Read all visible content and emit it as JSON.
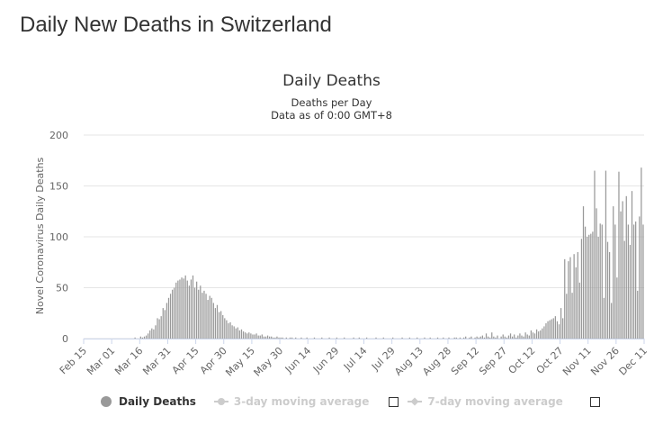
{
  "page": {
    "title": "Daily New Deaths in Switzerland"
  },
  "chart_data": {
    "type": "bar",
    "title": "Daily Deaths",
    "subtitle_lines": [
      "Deaths per Day",
      "Data as of 0:00 GMT+8"
    ],
    "xlabel": "",
    "ylabel": "Novel Coronavirus Daily Deaths",
    "ylim": [
      0,
      200
    ],
    "yticks": [
      0,
      50,
      100,
      150,
      200
    ],
    "grid": true,
    "bar_color": "#999999",
    "start_date": "2020-02-15",
    "xtick_labels": [
      "Feb 15",
      "Mar 01",
      "Mar 16",
      "Mar 31",
      "Apr 15",
      "Apr 30",
      "May 15",
      "May 30",
      "Jun 14",
      "Jun 29",
      "Jul 14",
      "Jul 29",
      "Aug 13",
      "Aug 28",
      "Sep 12",
      "Sep 27",
      "Oct 12",
      "Oct 27",
      "Nov 11",
      "Nov 26",
      "Dec 11"
    ],
    "legend": [
      "Daily Deaths",
      "3-day moving average",
      "7-day moving average"
    ],
    "legend_position": "bottom",
    "series": [
      {
        "name": "Daily Deaths",
        "values": [
          0,
          0,
          0,
          0,
          0,
          0,
          0,
          0,
          0,
          0,
          0,
          0,
          0,
          0,
          0,
          0,
          0,
          0,
          0,
          0,
          0,
          0,
          0,
          0,
          0,
          0,
          0,
          1,
          0,
          0,
          2,
          1,
          2,
          3,
          5,
          8,
          10,
          9,
          13,
          20,
          19,
          22,
          30,
          28,
          35,
          40,
          44,
          48,
          50,
          55,
          57,
          58,
          60,
          59,
          62,
          57,
          52,
          58,
          62,
          50,
          56,
          48,
          52,
          45,
          47,
          44,
          38,
          42,
          40,
          35,
          30,
          33,
          26,
          27,
          23,
          20,
          18,
          15,
          16,
          13,
          12,
          10,
          11,
          8,
          9,
          7,
          6,
          5,
          6,
          5,
          4,
          4,
          5,
          3,
          3,
          4,
          2,
          2,
          3,
          2,
          2,
          1,
          1,
          2,
          1,
          1,
          1,
          0,
          1,
          0,
          1,
          1,
          0,
          1,
          0,
          0,
          1,
          0,
          0,
          1,
          0,
          0,
          0,
          1,
          0,
          0,
          0,
          1,
          0,
          0,
          0,
          1,
          0,
          0,
          0,
          1,
          0,
          0,
          0,
          1,
          0,
          0,
          0,
          0,
          1,
          0,
          0,
          1,
          0,
          0,
          0,
          1,
          0,
          0,
          0,
          0,
          1,
          0,
          0,
          0,
          1,
          0,
          0,
          0,
          0,
          1,
          0,
          0,
          0,
          0,
          1,
          0,
          0,
          0,
          1,
          0,
          0,
          0,
          1,
          0,
          0,
          0,
          1,
          0,
          0,
          1,
          0,
          0,
          0,
          1,
          0,
          0,
          1,
          0,
          0,
          1,
          0,
          0,
          1,
          1,
          0,
          1,
          0,
          1,
          2,
          0,
          1,
          2,
          0,
          1,
          2,
          1,
          2,
          3,
          1,
          5,
          2,
          1,
          6,
          2,
          1,
          3,
          0,
          2,
          4,
          2,
          1,
          3,
          5,
          2,
          4,
          1,
          3,
          5,
          3,
          2,
          6,
          4,
          3,
          8,
          6,
          5,
          9,
          7,
          8,
          10,
          12,
          15,
          17,
          18,
          19,
          20,
          22,
          17,
          14,
          30,
          20,
          78,
          44,
          76,
          80,
          45,
          83,
          70,
          85,
          55,
          98,
          130,
          110,
          100,
          102,
          103,
          105,
          165,
          128,
          100,
          113,
          112,
          40,
          165,
          95,
          85,
          35,
          130,
          112,
          60,
          164,
          125,
          135,
          96,
          140,
          112,
          92,
          145,
          112,
          115,
          47,
          120,
          168,
          112
        ]
      }
    ]
  }
}
